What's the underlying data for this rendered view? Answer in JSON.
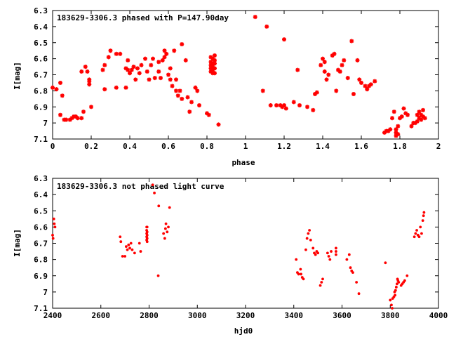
{
  "chart_data": [
    {
      "type": "scatter",
      "title": "183629-3306.3 phased with P=147.90day",
      "xlabel": "phase",
      "ylabel": "I[mag]",
      "xlim": [
        0,
        2
      ],
      "ylim": [
        7.1,
        6.3
      ],
      "y_inverted": true,
      "xticks": [
        0,
        0.2,
        0.4,
        0.6,
        0.8,
        1,
        1.2,
        1.4,
        1.6,
        1.8,
        2
      ],
      "xtick_labels": [
        "0",
        "0.2",
        "0.4",
        "0.6",
        "0.8",
        "1",
        "1.2",
        "1.4",
        "1.6",
        "1.8",
        "2"
      ],
      "yticks": [
        6.3,
        6.4,
        6.5,
        6.6,
        6.7,
        6.8,
        6.9,
        7,
        7.1
      ],
      "ytick_labels": [
        "6.3",
        "6.4",
        "6.5",
        "6.6",
        "6.7",
        "6.8",
        "6.9",
        "7",
        "7.1"
      ],
      "marker_color": "#ff0000",
      "marker": "star",
      "grid": false,
      "points": [
        [
          0.0,
          6.78
        ],
        [
          0.02,
          6.79
        ],
        [
          0.04,
          6.75
        ],
        [
          0.04,
          6.95
        ],
        [
          0.05,
          6.83
        ],
        [
          0.06,
          6.98
        ],
        [
          0.07,
          6.98
        ],
        [
          0.09,
          6.98
        ],
        [
          0.1,
          6.97
        ],
        [
          0.11,
          6.96
        ],
        [
          0.12,
          6.96
        ],
        [
          0.13,
          6.97
        ],
        [
          0.15,
          6.97
        ],
        [
          0.15,
          6.68
        ],
        [
          0.16,
          6.93
        ],
        [
          0.17,
          6.65
        ],
        [
          0.18,
          6.68
        ],
        [
          0.19,
          6.73
        ],
        [
          0.19,
          6.76
        ],
        [
          0.19,
          6.74
        ],
        [
          0.2,
          6.9
        ],
        [
          0.26,
          6.67
        ],
        [
          0.27,
          6.64
        ],
        [
          0.27,
          6.79
        ],
        [
          0.29,
          6.59
        ],
        [
          0.3,
          6.55
        ],
        [
          0.33,
          6.78
        ],
        [
          0.33,
          6.57
        ],
        [
          0.35,
          6.57
        ],
        [
          0.38,
          6.66
        ],
        [
          0.38,
          6.78
        ],
        [
          0.39,
          6.67
        ],
        [
          0.39,
          6.61
        ],
        [
          0.4,
          6.69
        ],
        [
          0.41,
          6.67
        ],
        [
          0.42,
          6.65
        ],
        [
          0.43,
          6.73
        ],
        [
          0.44,
          6.66
        ],
        [
          0.45,
          6.69
        ],
        [
          0.46,
          6.64
        ],
        [
          0.48,
          6.6
        ],
        [
          0.49,
          6.68
        ],
        [
          0.5,
          6.73
        ],
        [
          0.51,
          6.64
        ],
        [
          0.52,
          6.6
        ],
        [
          0.53,
          6.72
        ],
        [
          0.55,
          6.68
        ],
        [
          0.55,
          6.62
        ],
        [
          0.56,
          6.72
        ],
        [
          0.57,
          6.61
        ],
        [
          0.58,
          6.59
        ],
        [
          0.58,
          6.55
        ],
        [
          0.59,
          6.57
        ],
        [
          0.6,
          6.7
        ],
        [
          0.61,
          6.66
        ],
        [
          0.61,
          6.73
        ],
        [
          0.62,
          6.77
        ],
        [
          0.63,
          6.55
        ],
        [
          0.64,
          6.73
        ],
        [
          0.64,
          6.8
        ],
        [
          0.65,
          6.83
        ],
        [
          0.66,
          6.8
        ],
        [
          0.67,
          6.51
        ],
        [
          0.67,
          6.85
        ],
        [
          0.69,
          6.61
        ],
        [
          0.7,
          6.84
        ],
        [
          0.71,
          6.93
        ],
        [
          0.72,
          6.87
        ],
        [
          0.74,
          6.78
        ],
        [
          0.75,
          6.8
        ],
        [
          0.76,
          6.89
        ],
        [
          0.8,
          6.94
        ],
        [
          0.81,
          6.95
        ],
        [
          0.82,
          6.59
        ],
        [
          0.82,
          6.62
        ],
        [
          0.82,
          6.64
        ],
        [
          0.82,
          6.66
        ],
        [
          0.82,
          6.68
        ],
        [
          0.83,
          6.6
        ],
        [
          0.83,
          6.63
        ],
        [
          0.83,
          6.65
        ],
        [
          0.83,
          6.67
        ],
        [
          0.83,
          6.69
        ],
        [
          0.84,
          6.58
        ],
        [
          0.84,
          6.61
        ],
        [
          0.84,
          6.63
        ],
        [
          0.84,
          6.66
        ],
        [
          0.84,
          6.69
        ],
        [
          0.86,
          7.01
        ],
        [
          1.05,
          6.34
        ],
        [
          1.09,
          6.8
        ],
        [
          1.11,
          6.4
        ],
        [
          1.13,
          6.89
        ],
        [
          1.16,
          6.89
        ],
        [
          1.18,
          6.89
        ],
        [
          1.19,
          6.9
        ],
        [
          1.2,
          6.89
        ],
        [
          1.2,
          6.48
        ],
        [
          1.21,
          6.91
        ],
        [
          1.25,
          6.87
        ],
        [
          1.27,
          6.67
        ],
        [
          1.28,
          6.89
        ],
        [
          1.32,
          6.9
        ],
        [
          1.35,
          6.92
        ],
        [
          1.36,
          6.82
        ],
        [
          1.37,
          6.81
        ],
        [
          1.39,
          6.64
        ],
        [
          1.4,
          6.6
        ],
        [
          1.41,
          6.62
        ],
        [
          1.41,
          6.68
        ],
        [
          1.42,
          6.73
        ],
        [
          1.43,
          6.7
        ],
        [
          1.45,
          6.58
        ],
        [
          1.46,
          6.57
        ],
        [
          1.47,
          6.8
        ],
        [
          1.48,
          6.67
        ],
        [
          1.49,
          6.68
        ],
        [
          1.5,
          6.64
        ],
        [
          1.51,
          6.61
        ],
        [
          1.53,
          6.72
        ],
        [
          1.55,
          6.49
        ],
        [
          1.56,
          6.82
        ],
        [
          1.58,
          6.61
        ],
        [
          1.59,
          6.73
        ],
        [
          1.6,
          6.75
        ],
        [
          1.62,
          6.77
        ],
        [
          1.63,
          6.79
        ],
        [
          1.64,
          6.77
        ],
        [
          1.65,
          6.76
        ],
        [
          1.67,
          6.74
        ],
        [
          1.72,
          7.06
        ],
        [
          1.73,
          7.05
        ],
        [
          1.74,
          7.05
        ],
        [
          1.75,
          7.04
        ],
        [
          1.76,
          6.97
        ],
        [
          1.77,
          6.93
        ],
        [
          1.78,
          7.04
        ],
        [
          1.78,
          7.06
        ],
        [
          1.78,
          7.08
        ],
        [
          1.79,
          7.02
        ],
        [
          1.79,
          7.07
        ],
        [
          1.8,
          6.97
        ],
        [
          1.81,
          6.96
        ],
        [
          1.82,
          6.91
        ],
        [
          1.83,
          6.94
        ],
        [
          1.84,
          6.95
        ],
        [
          1.86,
          7.02
        ],
        [
          1.87,
          7.0
        ],
        [
          1.88,
          7.0
        ],
        [
          1.89,
          6.99
        ],
        [
          1.89,
          6.95
        ],
        [
          1.9,
          6.97
        ],
        [
          1.9,
          6.93
        ],
        [
          1.91,
          6.98
        ],
        [
          1.91,
          6.95
        ],
        [
          1.92,
          6.92
        ],
        [
          1.92,
          6.96
        ],
        [
          1.93,
          6.97
        ]
      ]
    },
    {
      "type": "scatter",
      "title": "183629-3306.3 not phased light curve",
      "xlabel": "hjd0",
      "ylabel": "I[mag]",
      "xlim": [
        2400,
        4000
      ],
      "ylim": [
        7.1,
        6.3
      ],
      "y_inverted": true,
      "xticks": [
        2400,
        2600,
        2800,
        3000,
        3200,
        3400,
        3600,
        3800,
        4000
      ],
      "xtick_labels": [
        "2400",
        "2600",
        "2800",
        "3000",
        "3200",
        "3400",
        "3600",
        "3800",
        "4000"
      ],
      "yticks": [
        6.3,
        6.4,
        6.5,
        6.6,
        6.7,
        6.8,
        6.9,
        7,
        7.1
      ],
      "ytick_labels": [
        "6.3",
        "6.4",
        "6.5",
        "6.6",
        "6.7",
        "6.8",
        "6.9",
        "7",
        "7.1"
      ],
      "marker_color": "#ff0000",
      "marker": "dot",
      "grid": false,
      "points": [
        [
          2400,
          6.65
        ],
        [
          2402,
          6.67
        ],
        [
          2405,
          6.55
        ],
        [
          2407,
          6.58
        ],
        [
          2410,
          6.6
        ],
        [
          2680,
          6.66
        ],
        [
          2683,
          6.69
        ],
        [
          2690,
          6.78
        ],
        [
          2700,
          6.78
        ],
        [
          2705,
          6.72
        ],
        [
          2710,
          6.74
        ],
        [
          2715,
          6.71
        ],
        [
          2720,
          6.73
        ],
        [
          2725,
          6.7
        ],
        [
          2730,
          6.74
        ],
        [
          2740,
          6.76
        ],
        [
          2760,
          6.7
        ],
        [
          2765,
          6.75
        ],
        [
          2790,
          6.6
        ],
        [
          2790,
          6.62
        ],
        [
          2790,
          6.64
        ],
        [
          2790,
          6.66
        ],
        [
          2790,
          6.68
        ],
        [
          2792,
          6.6
        ],
        [
          2792,
          6.63
        ],
        [
          2792,
          6.65
        ],
        [
          2792,
          6.67
        ],
        [
          2792,
          6.69
        ],
        [
          2815,
          6.34
        ],
        [
          2822,
          6.39
        ],
        [
          2838,
          6.9
        ],
        [
          2840,
          6.47
        ],
        [
          2860,
          6.64
        ],
        [
          2865,
          6.67
        ],
        [
          2868,
          6.61
        ],
        [
          2870,
          6.58
        ],
        [
          2875,
          6.63
        ],
        [
          2880,
          6.6
        ],
        [
          2885,
          6.48
        ],
        [
          3410,
          6.8
        ],
        [
          3415,
          6.88
        ],
        [
          3420,
          6.89
        ],
        [
          3428,
          6.86
        ],
        [
          3430,
          6.89
        ],
        [
          3435,
          6.91
        ],
        [
          3440,
          6.92
        ],
        [
          3450,
          6.74
        ],
        [
          3455,
          6.67
        ],
        [
          3460,
          6.64
        ],
        [
          3465,
          6.62
        ],
        [
          3470,
          6.68
        ],
        [
          3480,
          6.73
        ],
        [
          3485,
          6.76
        ],
        [
          3490,
          6.77
        ],
        [
          3495,
          6.75
        ],
        [
          3500,
          6.76
        ],
        [
          3510,
          6.96
        ],
        [
          3515,
          6.94
        ],
        [
          3520,
          6.92
        ],
        [
          3540,
          6.76
        ],
        [
          3545,
          6.78
        ],
        [
          3550,
          6.8
        ],
        [
          3555,
          6.75
        ],
        [
          3575,
          6.73
        ],
        [
          3575,
          6.75
        ],
        [
          3575,
          6.77
        ],
        [
          3620,
          6.8
        ],
        [
          3630,
          6.77
        ],
        [
          3635,
          6.85
        ],
        [
          3640,
          6.87
        ],
        [
          3645,
          6.88
        ],
        [
          3660,
          6.94
        ],
        [
          3670,
          7.01
        ],
        [
          3780,
          6.82
        ],
        [
          3800,
          7.05
        ],
        [
          3805,
          7.08
        ],
        [
          3808,
          7.1
        ],
        [
          3810,
          7.04
        ],
        [
          3815,
          7.03
        ],
        [
          3818,
          7.0
        ],
        [
          3820,
          7.02
        ],
        [
          3822,
          6.99
        ],
        [
          3825,
          6.97
        ],
        [
          3828,
          6.95
        ],
        [
          3830,
          6.92
        ],
        [
          3832,
          6.93
        ],
        [
          3835,
          6.94
        ],
        [
          3845,
          6.96
        ],
        [
          3850,
          6.95
        ],
        [
          3855,
          6.94
        ],
        [
          3860,
          6.93
        ],
        [
          3870,
          6.9
        ],
        [
          3900,
          6.66
        ],
        [
          3905,
          6.64
        ],
        [
          3910,
          6.62
        ],
        [
          3915,
          6.65
        ],
        [
          3920,
          6.66
        ],
        [
          3925,
          6.6
        ],
        [
          3930,
          6.64
        ],
        [
          3935,
          6.56
        ],
        [
          3938,
          6.53
        ],
        [
          3940,
          6.51
        ]
      ]
    }
  ]
}
